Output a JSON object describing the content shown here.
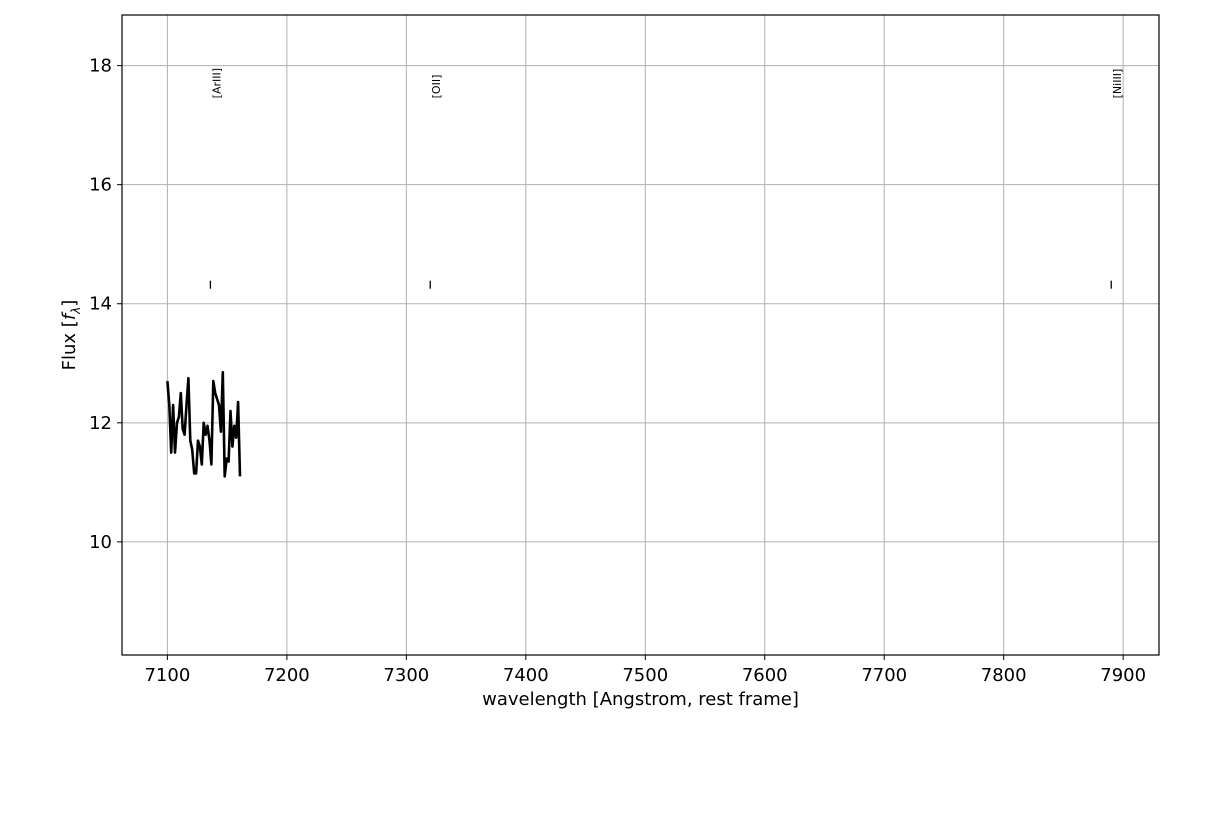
{
  "chart_data": {
    "type": "line",
    "title": "",
    "xlabel": "wavelength [Angstrom, rest frame]",
    "ylabel_prefix": "Flux [",
    "ylabel_symbol": "f",
    "ylabel_subscript": "λ",
    "ylabel_suffix": "]",
    "xlim": [
      7062,
      7930
    ],
    "ylim": [
      8.1,
      18.85
    ],
    "x_ticks": [
      7100,
      7200,
      7300,
      7400,
      7500,
      7600,
      7700,
      7800,
      7900
    ],
    "y_ticks": [
      10,
      12,
      14,
      16,
      18
    ],
    "grid": true,
    "series": [
      {
        "color": "#000000",
        "x": [
          7100.0,
          7101.6,
          7103.2,
          7104.8,
          7106.4,
          7108.0,
          7109.6,
          7111.2,
          7112.8,
          7114.4,
          7116.0,
          7117.6,
          7119.2,
          7120.8,
          7122.4,
          7124.0,
          7125.6,
          7127.2,
          7128.8,
          7130.4,
          7132.0,
          7133.6,
          7135.2,
          7136.8,
          7138.4,
          7140.0,
          7141.6,
          7143.2,
          7144.8,
          7146.4,
          7148.0,
          7149.6,
          7151.2,
          7152.8,
          7154.4,
          7156.0,
          7157.6,
          7159.2,
          7160.8
        ],
        "y": [
          12.7,
          12.3,
          11.5,
          12.3,
          11.5,
          12.0,
          12.1,
          12.5,
          11.9,
          11.8,
          12.3,
          12.75,
          11.7,
          11.55,
          11.15,
          11.15,
          11.7,
          11.6,
          11.3,
          12.0,
          11.8,
          11.95,
          11.7,
          11.3,
          12.7,
          12.5,
          12.4,
          12.3,
          11.85,
          12.85,
          11.1,
          11.4,
          11.35,
          12.2,
          11.6,
          11.95,
          11.75,
          12.35,
          11.1
        ]
      }
    ],
    "annotations": [
      {
        "label": "[ArIII]",
        "x": 7136
      },
      {
        "label": "[OII]",
        "x": 7320
      },
      {
        "label": "[NiIII]",
        "x": 7890
      }
    ],
    "marker_y": 14.32,
    "label_y": 17.45
  }
}
